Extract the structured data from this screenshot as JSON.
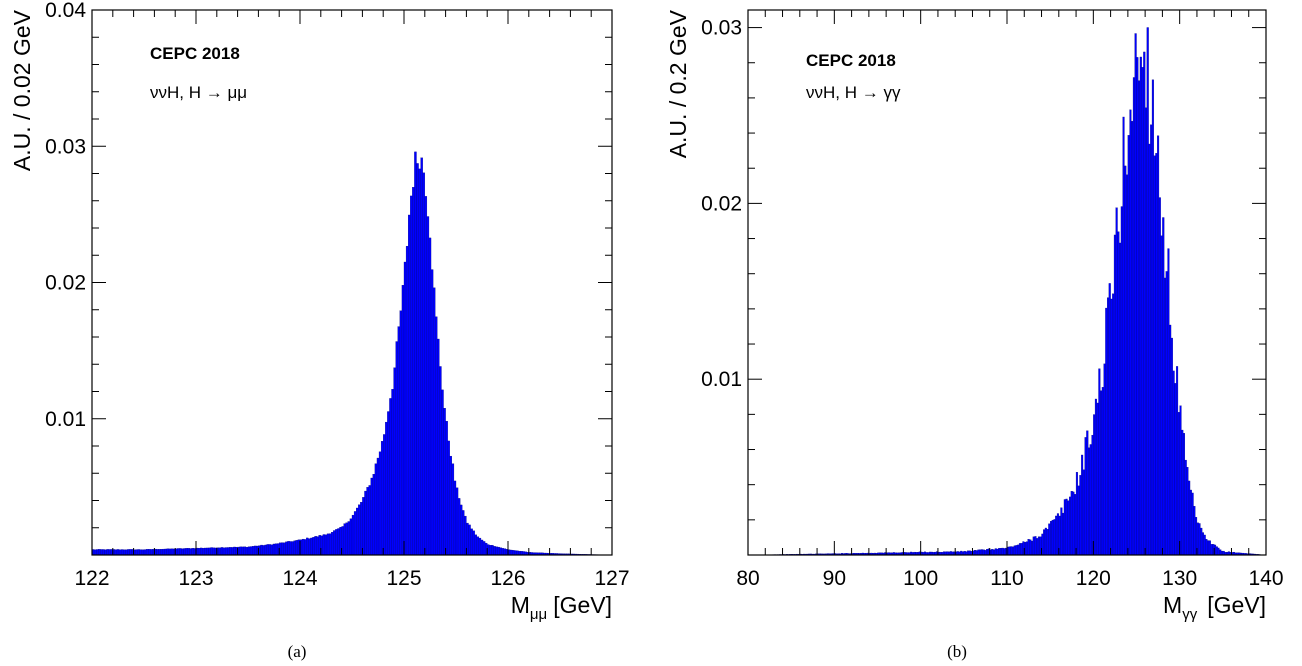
{
  "chart_data": [
    {
      "type": "bar",
      "panel": "(a)",
      "experiment_label": "CEPC 2018",
      "process_label": "ννH, H → μμ",
      "xlabel": "M_μμ [GeV]",
      "xlabel_main": "M",
      "xlabel_sub": "μμ",
      "xlabel_unit": "[GeV]",
      "ylabel": "A.U. / 0.02 GeV",
      "xlim": [
        122,
        127
      ],
      "ylim": [
        0,
        0.04
      ],
      "x_ticks": [
        122,
        123,
        124,
        125,
        126,
        127
      ],
      "y_ticks": [
        0.01,
        0.02,
        0.03,
        0.04
      ],
      "y_tick_labels": [
        "0.01",
        "0.02",
        "0.03",
        "0.04"
      ],
      "bin_width": 0.02,
      "series": [
        {
          "x": [
            122.0,
            122.5,
            123.0,
            123.5,
            123.75,
            124.0,
            124.25,
            124.4,
            124.5,
            124.6,
            124.7,
            124.8,
            124.9,
            125.0,
            125.05,
            125.1,
            125.15,
            125.2,
            125.25,
            125.3,
            125.4,
            125.5,
            125.6,
            125.7,
            125.8,
            126.0,
            126.2,
            126.5,
            127.0
          ],
          "values": [
            0.0004,
            0.0004,
            0.0005,
            0.0006,
            0.0008,
            0.0011,
            0.0015,
            0.002,
            0.0028,
            0.004,
            0.0058,
            0.0085,
            0.013,
            0.02,
            0.025,
            0.0285,
            0.0295,
            0.028,
            0.024,
            0.018,
            0.01,
            0.005,
            0.0025,
            0.0014,
            0.0008,
            0.0004,
            0.0002,
            0.0001,
            0.0
          ]
        }
      ],
      "bar_color": "#0000ff",
      "edge_color": "#000080"
    },
    {
      "type": "bar",
      "panel": "(b)",
      "experiment_label": "CEPC 2018",
      "process_label": "ννH, H → γγ",
      "xlabel": "M_γγ [GeV]",
      "xlabel_main": "M",
      "xlabel_sub": "γγ",
      "xlabel_unit": "[GeV]",
      "ylabel": "A.U. / 0.2 GeV",
      "xlim": [
        80,
        140
      ],
      "ylim": [
        0,
        0.031
      ],
      "x_ticks": [
        80,
        90,
        100,
        110,
        120,
        130,
        140
      ],
      "y_ticks": [
        0.01,
        0.02,
        0.03
      ],
      "y_tick_labels": [
        "0.01",
        "0.02",
        "0.03"
      ],
      "bin_width": 0.2,
      "series": [
        {
          "x": [
            80,
            105,
            110,
            112,
            114,
            116,
            118,
            120,
            121,
            122,
            123,
            124,
            125,
            126,
            127,
            128,
            129,
            130,
            131,
            132,
            133,
            135,
            140
          ],
          "values": [
            0.0,
            0.0002,
            0.0004,
            0.0007,
            0.0012,
            0.0022,
            0.004,
            0.0075,
            0.0105,
            0.0145,
            0.0195,
            0.0245,
            0.028,
            0.0285,
            0.0255,
            0.0195,
            0.0135,
            0.008,
            0.0042,
            0.002,
            0.0009,
            0.0002,
            0.0
          ]
        }
      ],
      "bar_color": "#0000ff",
      "edge_color": "#000080"
    }
  ]
}
